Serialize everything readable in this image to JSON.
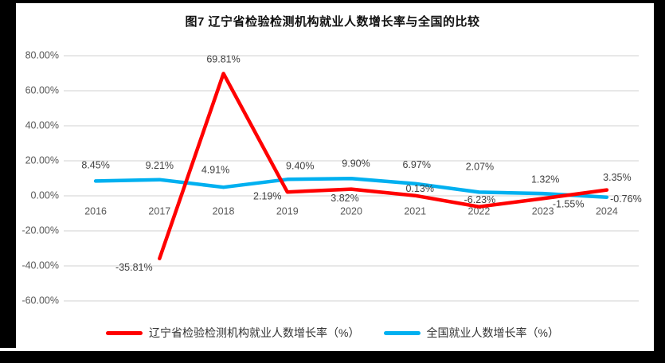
{
  "title": "图7  辽宁省检验检测机构就业人数增长率与全国的比较",
  "chart_data": {
    "type": "line",
    "categories": [
      "2016",
      "2017",
      "2018",
      "2019",
      "2020",
      "2021",
      "2022",
      "2023",
      "2024"
    ],
    "series": [
      {
        "name": "全国就业人数增长率（%）",
        "color": "#00b0f0",
        "values": [
          8.45,
          9.21,
          4.91,
          9.4,
          9.9,
          6.97,
          2.07,
          1.32,
          -0.76
        ],
        "labels": [
          "8.45%",
          "9.21%",
          "4.91%",
          "9.40%",
          "9.90%",
          "6.97%",
          "2.07%",
          "1.32%",
          "-0.76%"
        ],
        "label_offsets": [
          [
            0,
            -19
          ],
          [
            0,
            -17
          ],
          [
            -10,
            -21
          ],
          [
            16,
            -16
          ],
          [
            6,
            -18
          ],
          [
            2,
            -23
          ],
          [
            1,
            -31
          ],
          [
            3,
            -17
          ],
          [
            24,
            3
          ]
        ]
      },
      {
        "name": "辽宁省检验检测机构就业人数增长率（%）",
        "color": "#ff0000",
        "values": [
          null,
          -35.81,
          69.81,
          2.19,
          3.82,
          0.13,
          -6.23,
          -1.55,
          3.35
        ],
        "labels": [
          null,
          "-35.81%",
          "69.81%",
          "2.19%",
          "3.82%",
          "0.13%",
          "-6.23%",
          "-1.55%",
          "3.35%"
        ],
        "label_offsets": [
          null,
          [
            -32,
            12
          ],
          [
            0,
            -17
          ],
          [
            -25,
            6
          ],
          [
            -8,
            12
          ],
          [
            6,
            -8
          ],
          [
            1,
            -8
          ],
          [
            32,
            8
          ],
          [
            13,
            -15
          ]
        ]
      }
    ],
    "ytick_values": [
      80,
      60,
      40,
      20,
      0,
      -20,
      -40,
      -60
    ],
    "ylim": [
      -60,
      80
    ],
    "grid": true,
    "legend_position": "bottom",
    "legend_order": [
      1,
      0
    ],
    "colors": {
      "gridline": "#d9d9d9",
      "tick_text": "#595959",
      "data_label_text": "#404040"
    }
  }
}
